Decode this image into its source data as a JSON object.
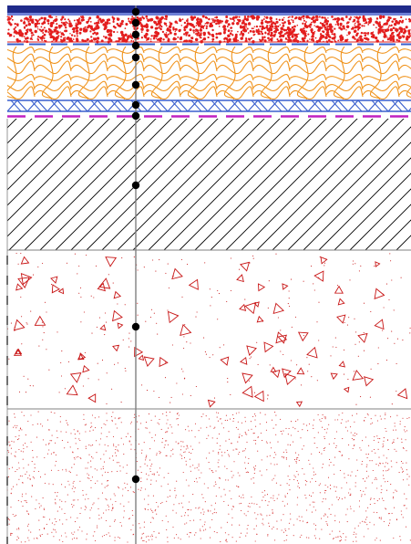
{
  "diagram": {
    "kind": "wall/floor build-up section with layer markers",
    "colors": {
      "top_band": "#1f2a8a",
      "top_band_light": "#6d7fd6",
      "red_fill": "#e31e1e",
      "wood_line": "#f0941e",
      "membrane_blue": "#3a5fcd",
      "membrane_magenta": "#c020c0",
      "hatch": "#000000",
      "triangle_red": "#c81414",
      "dot_red": "#d42a2a",
      "marker": "#000000",
      "axis": "#808080",
      "layer_border": "#808080"
    },
    "layers": [
      {
        "id": "finish-band",
        "pattern": "solid"
      },
      {
        "id": "red-granular",
        "pattern": "dense-red-dots"
      },
      {
        "id": "separator-1",
        "pattern": "dashed-blue"
      },
      {
        "id": "timber-insulation",
        "pattern": "wood-grain"
      },
      {
        "id": "membrane",
        "pattern": "blue-cross"
      },
      {
        "id": "separator-2",
        "pattern": "dashed-magenta"
      },
      {
        "id": "concrete-hatch",
        "pattern": "diagonal-hatch"
      },
      {
        "id": "concrete-aggregate",
        "pattern": "triangles-and-dots"
      },
      {
        "id": "sand-fill",
        "pattern": "sparse-red-dots"
      }
    ],
    "marker_count": 11
  }
}
